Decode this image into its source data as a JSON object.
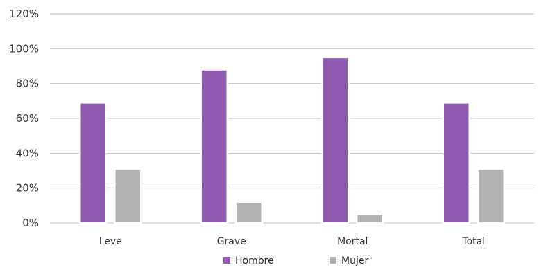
{
  "chart_data": {
    "type": "bar",
    "categories": [
      "Leve",
      "Grave",
      "Mortal",
      "Total"
    ],
    "series": [
      {
        "name": "Hombre",
        "values": [
          69,
          88,
          95,
          69
        ],
        "color": "#8e5bb0"
      },
      {
        "name": "Mujer",
        "values": [
          31,
          12,
          5,
          31
        ],
        "color": "#b2b2b2"
      }
    ],
    "y_ticks": [
      "0%",
      "20%",
      "40%",
      "60%",
      "80%",
      "100%",
      "120%"
    ],
    "ylim": [
      0,
      120
    ],
    "y_step": 20,
    "grid": true,
    "legend": "bottom-center"
  }
}
